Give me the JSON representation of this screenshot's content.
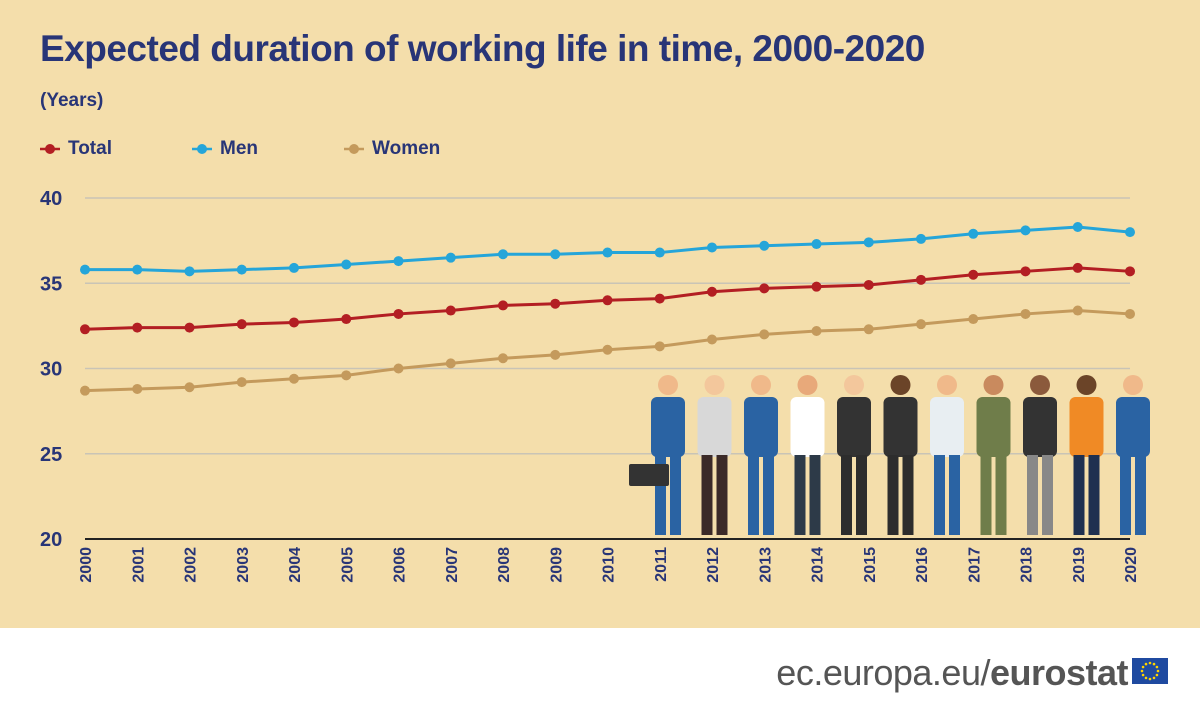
{
  "title": "Expected duration of working life in time, 2000-2020",
  "subtitle": "(Years)",
  "footer": {
    "site_prefix": "ec.europa.eu/",
    "site_brand": "eurostat"
  },
  "chart_data": {
    "type": "line",
    "title": "Expected duration of working life in time, 2000-2020",
    "ylabel": "(Years)",
    "ylim": [
      20,
      40
    ],
    "yticks": [
      "20",
      "25",
      "30",
      "35",
      "40"
    ],
    "grid": true,
    "legend": "top-left",
    "x": [
      "2000",
      "2001",
      "2002",
      "2003",
      "2004",
      "2005",
      "2006",
      "2007",
      "2008",
      "2009",
      "2010",
      "2011",
      "2012",
      "2013",
      "2014",
      "2015",
      "2016",
      "2017",
      "2018",
      "2019",
      "2020"
    ],
    "series": [
      {
        "name": "Total",
        "color": "#b31e23",
        "values": [
          32.3,
          32.4,
          32.4,
          32.6,
          32.7,
          32.9,
          33.2,
          33.4,
          33.7,
          33.8,
          34.0,
          34.1,
          34.5,
          34.7,
          34.8,
          34.9,
          35.2,
          35.5,
          35.7,
          35.9,
          35.7
        ]
      },
      {
        "name": "Men",
        "color": "#25a5d9",
        "values": [
          35.8,
          35.8,
          35.7,
          35.8,
          35.9,
          36.1,
          36.3,
          36.5,
          36.7,
          36.7,
          36.8,
          36.8,
          37.1,
          37.2,
          37.3,
          37.4,
          37.6,
          37.9,
          38.1,
          38.3,
          38.0
        ]
      },
      {
        "name": "Women",
        "color": "#c49a5c",
        "values": [
          28.7,
          28.8,
          28.9,
          29.2,
          29.4,
          29.6,
          30.0,
          30.3,
          30.6,
          30.8,
          31.1,
          31.3,
          31.7,
          32.0,
          32.2,
          32.3,
          32.6,
          32.9,
          33.2,
          33.4,
          33.2
        ]
      }
    ]
  },
  "colors": {
    "background": "#f4deab",
    "text": "#283577",
    "grid": "#c9c4b6"
  }
}
